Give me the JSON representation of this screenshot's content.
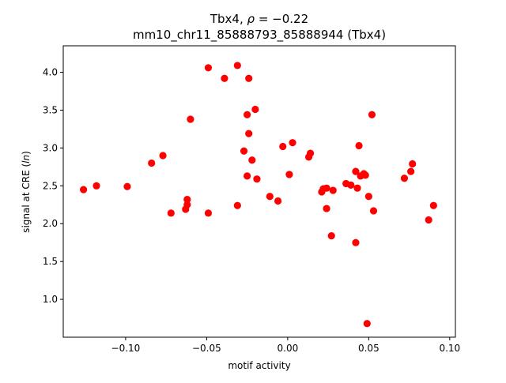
{
  "chart_data": {
    "type": "scatter",
    "title_line1": "Tbx4, ρ = −0.22",
    "title_line2": "mm10_chr11_85888793_85888944 (Tbx4)",
    "xlabel": "motif activity",
    "ylabel": "signal at CRE (ln)",
    "xlim": [
      -0.1385,
      0.1035
    ],
    "ylim": [
      0.5,
      4.35
    ],
    "x_ticks": [
      -0.1,
      -0.05,
      0.0,
      0.05,
      0.1
    ],
    "x_tick_labels": [
      "−0.10",
      "−0.05",
      "0.00",
      "0.05",
      "0.10"
    ],
    "y_ticks": [
      1.0,
      1.5,
      2.0,
      2.5,
      3.0,
      3.5,
      4.0
    ],
    "y_tick_labels": [
      "1.0",
      "1.5",
      "2.0",
      "2.5",
      "3.0",
      "3.5",
      "4.0"
    ],
    "grid": false,
    "legend": "none",
    "marker_color": "#ff0000",
    "points": [
      {
        "x": -0.126,
        "y": 2.45
      },
      {
        "x": -0.118,
        "y": 2.5
      },
      {
        "x": -0.099,
        "y": 2.49
      },
      {
        "x": -0.084,
        "y": 2.8
      },
      {
        "x": -0.077,
        "y": 2.9
      },
      {
        "x": -0.072,
        "y": 2.14
      },
      {
        "x": -0.063,
        "y": 2.19
      },
      {
        "x": -0.062,
        "y": 2.25
      },
      {
        "x": -0.062,
        "y": 2.32
      },
      {
        "x": -0.06,
        "y": 3.38
      },
      {
        "x": -0.049,
        "y": 4.06
      },
      {
        "x": -0.049,
        "y": 2.14
      },
      {
        "x": -0.039,
        "y": 3.92
      },
      {
        "x": -0.031,
        "y": 4.09
      },
      {
        "x": -0.031,
        "y": 2.24
      },
      {
        "x": -0.027,
        "y": 2.96
      },
      {
        "x": -0.025,
        "y": 3.44
      },
      {
        "x": -0.024,
        "y": 3.92
      },
      {
        "x": -0.024,
        "y": 3.19
      },
      {
        "x": -0.025,
        "y": 2.63
      },
      {
        "x": -0.022,
        "y": 2.84
      },
      {
        "x": -0.02,
        "y": 3.51
      },
      {
        "x": -0.019,
        "y": 2.59
      },
      {
        "x": -0.011,
        "y": 2.36
      },
      {
        "x": -0.006,
        "y": 2.3
      },
      {
        "x": -0.003,
        "y": 3.02
      },
      {
        "x": 0.001,
        "y": 2.65
      },
      {
        "x": 0.003,
        "y": 3.07
      },
      {
        "x": 0.013,
        "y": 2.88
      },
      {
        "x": 0.014,
        "y": 2.93
      },
      {
        "x": 0.021,
        "y": 2.42
      },
      {
        "x": 0.022,
        "y": 2.46
      },
      {
        "x": 0.024,
        "y": 2.47
      },
      {
        "x": 0.024,
        "y": 2.2
      },
      {
        "x": 0.027,
        "y": 1.84
      },
      {
        "x": 0.028,
        "y": 2.44
      },
      {
        "x": 0.036,
        "y": 2.53
      },
      {
        "x": 0.039,
        "y": 2.51
      },
      {
        "x": 0.042,
        "y": 2.69
      },
      {
        "x": 0.042,
        "y": 1.75
      },
      {
        "x": 0.043,
        "y": 2.47
      },
      {
        "x": 0.044,
        "y": 3.03
      },
      {
        "x": 0.045,
        "y": 2.63
      },
      {
        "x": 0.047,
        "y": 2.66
      },
      {
        "x": 0.048,
        "y": 2.64
      },
      {
        "x": 0.049,
        "y": 0.68
      },
      {
        "x": 0.05,
        "y": 2.36
      },
      {
        "x": 0.052,
        "y": 3.44
      },
      {
        "x": 0.053,
        "y": 2.17
      },
      {
        "x": 0.072,
        "y": 2.6
      },
      {
        "x": 0.076,
        "y": 2.69
      },
      {
        "x": 0.077,
        "y": 2.79
      },
      {
        "x": 0.087,
        "y": 2.05
      },
      {
        "x": 0.09,
        "y": 2.24
      }
    ]
  }
}
